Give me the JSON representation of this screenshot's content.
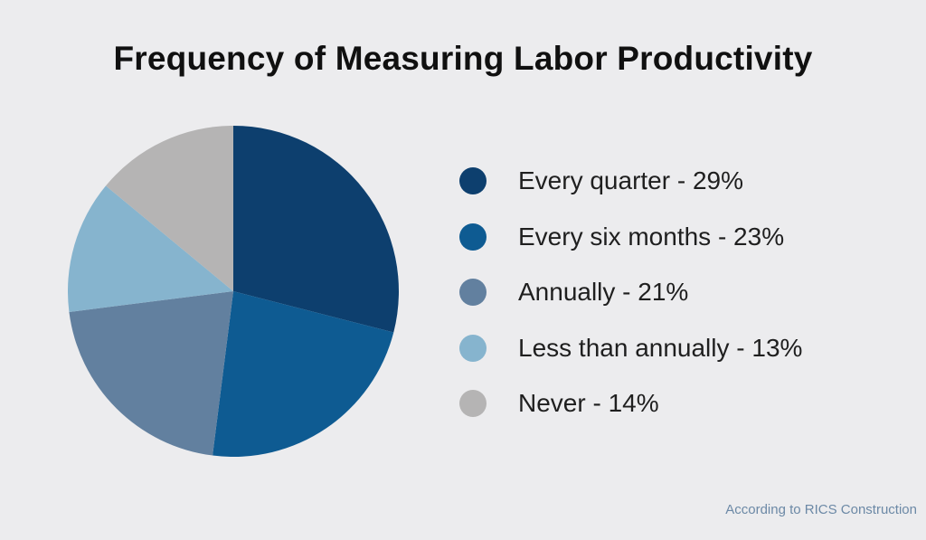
{
  "title": "Frequency of Measuring Labor Productivity",
  "source": "According to RICS Construction",
  "colors": {
    "background": "#ececee",
    "title_text": "#101010",
    "legend_text": "#1f1f1f",
    "source_text": "#6c89a6"
  },
  "chart_data": {
    "type": "pie",
    "title": "Frequency of Measuring Labor Productivity",
    "categories": [
      "Every quarter",
      "Every six months",
      "Annually",
      "Less than annually",
      "Never"
    ],
    "values": [
      29,
      23,
      21,
      13,
      14
    ],
    "unit": "%",
    "colors": [
      "#0d3f6e",
      "#0e5b92",
      "#62809f",
      "#86b4ce",
      "#b5b4b4"
    ],
    "start_angle_deg": 0,
    "direction": "clockwise",
    "legend_position": "right"
  },
  "legend": {
    "items": [
      {
        "label": "Every quarter - 29%",
        "color": "#0d3f6e"
      },
      {
        "label": "Every six months - 23%",
        "color": "#0e5b92"
      },
      {
        "label": "Annually - 21%",
        "color": "#62809f"
      },
      {
        "label": "Less than annually - 13%",
        "color": "#86b4ce"
      },
      {
        "label": "Never - 14%",
        "color": "#b5b4b4"
      }
    ]
  }
}
